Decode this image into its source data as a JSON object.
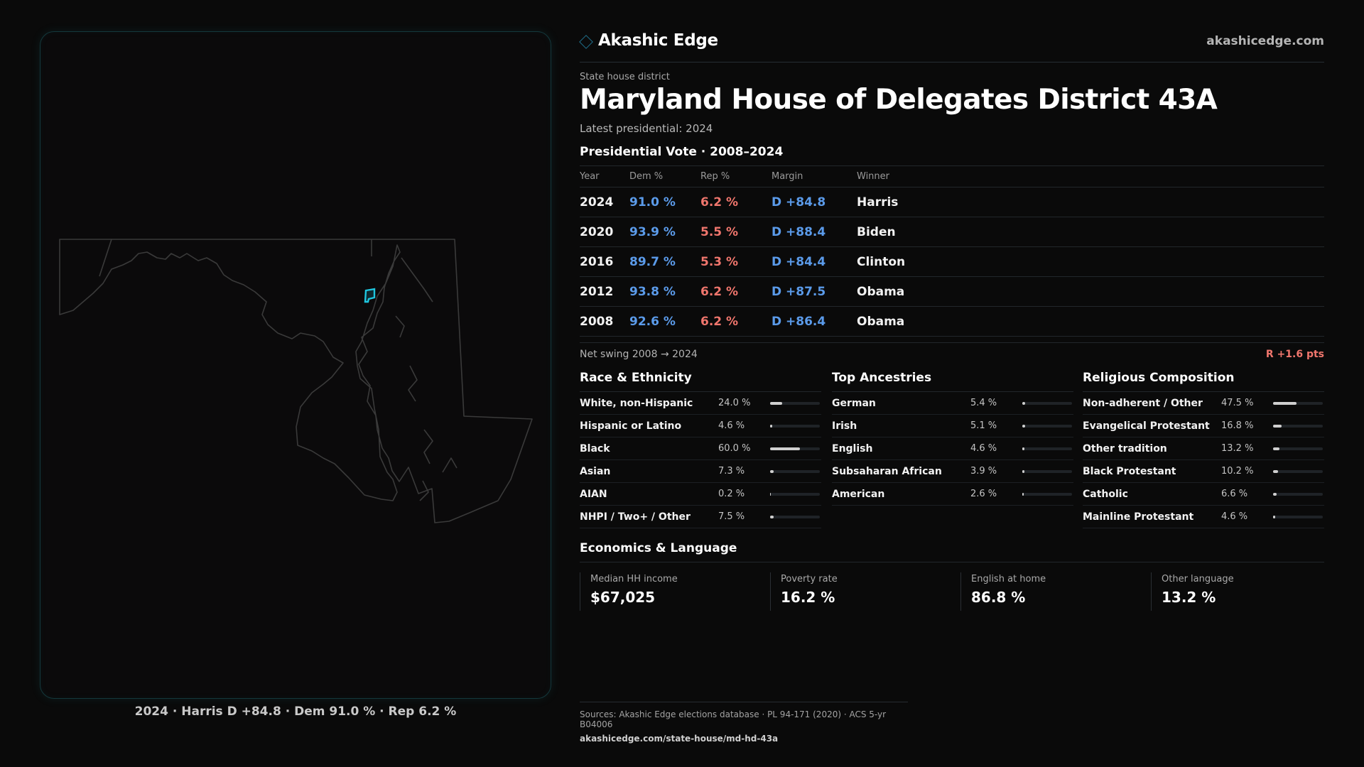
{
  "brand": {
    "name": "Akashic Edge",
    "url": "akashicedge.com",
    "accent": "#1f6f8b"
  },
  "header": {
    "kicker": "State house district",
    "title": "Maryland House of Delegates District 43A",
    "latest": "Latest presidential: 2024"
  },
  "map": {
    "caption": "2024 · Harris D +84.8 · Dem 91.0 % · Rep 6.2 %",
    "highlight_color": "#1fc7e0"
  },
  "vote": {
    "heading": "Presidential Vote · 2008–2024",
    "columns": [
      "Year",
      "Dem %",
      "Rep %",
      "Margin",
      "Winner"
    ],
    "rows": [
      {
        "year": "2024",
        "dem": "91.0 %",
        "rep": "6.2 %",
        "margin": "D +84.8",
        "winner": "Harris"
      },
      {
        "year": "2020",
        "dem": "93.9 %",
        "rep": "5.5 %",
        "margin": "D +88.4",
        "winner": "Biden"
      },
      {
        "year": "2016",
        "dem": "89.7 %",
        "rep": "5.3 %",
        "margin": "D +84.4",
        "winner": "Clinton"
      },
      {
        "year": "2012",
        "dem": "93.8 %",
        "rep": "6.2 %",
        "margin": "D +87.5",
        "winner": "Obama"
      },
      {
        "year": "2008",
        "dem": "92.6 %",
        "rep": "6.2 %",
        "margin": "D +86.4",
        "winner": "Obama"
      }
    ],
    "swing_label": "Net swing 2008 → 2024",
    "swing_value": "R +1.6 pts",
    "dem_color": "#5b9bea",
    "rep_color": "#f0766d"
  },
  "race": {
    "heading": "Race & Ethnicity",
    "items": [
      {
        "label": "White, non-Hispanic",
        "pct": "24.0 %",
        "value": 24.0
      },
      {
        "label": "Hispanic or Latino",
        "pct": "4.6 %",
        "value": 4.6
      },
      {
        "label": "Black",
        "pct": "60.0 %",
        "value": 60.0
      },
      {
        "label": "Asian",
        "pct": "7.3 %",
        "value": 7.3
      },
      {
        "label": "AIAN",
        "pct": "0.2 %",
        "value": 0.2
      },
      {
        "label": "NHPI / Two+ / Other",
        "pct": "7.5 %",
        "value": 7.5
      }
    ]
  },
  "ancestry": {
    "heading": "Top Ancestries",
    "items": [
      {
        "label": "German",
        "pct": "5.4 %",
        "value": 5.4
      },
      {
        "label": "Irish",
        "pct": "5.1 %",
        "value": 5.1
      },
      {
        "label": "English",
        "pct": "4.6 %",
        "value": 4.6
      },
      {
        "label": "Subsaharan African",
        "pct": "3.9 %",
        "value": 3.9
      },
      {
        "label": "American",
        "pct": "2.6 %",
        "value": 2.6
      }
    ]
  },
  "religion": {
    "heading": "Religious Composition",
    "items": [
      {
        "label": "Non-adherent / Other",
        "pct": "47.5 %",
        "value": 47.5
      },
      {
        "label": "Evangelical Protestant",
        "pct": "16.8 %",
        "value": 16.8
      },
      {
        "label": "Other tradition",
        "pct": "13.2 %",
        "value": 13.2
      },
      {
        "label": "Black Protestant",
        "pct": "10.2 %",
        "value": 10.2
      },
      {
        "label": "Catholic",
        "pct": "6.6 %",
        "value": 6.6
      },
      {
        "label": "Mainline Protestant",
        "pct": "4.6 %",
        "value": 4.6
      }
    ]
  },
  "econ": {
    "heading": "Economics & Language",
    "items": [
      {
        "label": "Median HH income",
        "value": "$67,025"
      },
      {
        "label": "Poverty rate",
        "value": "16.2 %"
      },
      {
        "label": "English at home",
        "value": "86.8 %"
      },
      {
        "label": "Other language",
        "value": "13.2 %"
      }
    ]
  },
  "footer": {
    "sources": "Sources: Akashic Edge elections database · PL 94-171 (2020) · ACS 5-yr B04006",
    "link": "akashicedge.com/state-house/md-hd-43a"
  }
}
